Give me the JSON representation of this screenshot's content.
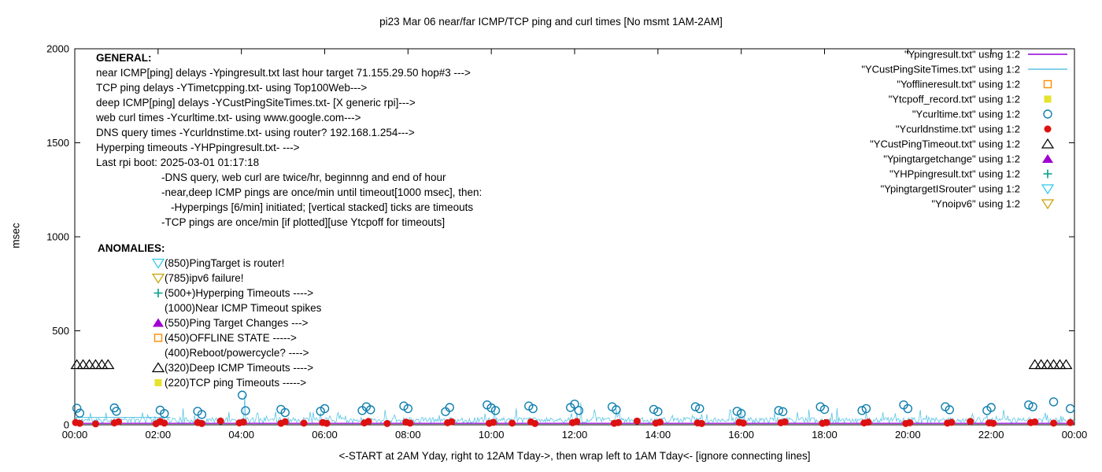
{
  "title": "pi23 Mar 06  near/far ICMP/TCP ping and curl times [No msmt 1AM-2AM]",
  "chart_data": {
    "type": "line",
    "title": "pi23 Mar 06  near/far ICMP/TCP ping and curl times [No msmt 1AM-2AM]",
    "xlabel": "<-START at 2AM Yday, right to 12AM Tday->, then wrap left to 1AM Tday<- [ignore connecting lines]",
    "ylabel": "msec",
    "ylim": [
      0,
      2000
    ],
    "xlim_hours": [
      0,
      24
    ],
    "grid": false,
    "legend_position": "top-right",
    "y_ticks": [
      0,
      500,
      1000,
      1500,
      2000
    ],
    "x_tick_hours": [
      0,
      2,
      4,
      6,
      8,
      10,
      12,
      14,
      16,
      18,
      20,
      22,
      24
    ],
    "x_tick_labels": [
      "00:00",
      "02:00",
      "04:00",
      "06:00",
      "08:00",
      "10:00",
      "12:00",
      "14:00",
      "16:00",
      "18:00",
      "20:00",
      "22:00",
      "00:00"
    ],
    "legend": [
      {
        "label": "\"Ypingresult.txt\" using 1:2",
        "marker": "line",
        "color": "#9400d3"
      },
      {
        "label": "\"YCustPingSiteTimes.txt\" using 1:2",
        "marker": "line",
        "color": "#5bc4e4"
      },
      {
        "label": "\"Yofflineresult.txt\" using 1:2",
        "marker": "square-open",
        "color": "#ff8c00"
      },
      {
        "label": "\"Ytcpoff_record.txt\" using 1:2",
        "marker": "square-filled",
        "color": "#e6e22e"
      },
      {
        "label": "\"Ycurltime.txt\" using 1:2",
        "marker": "circle-open",
        "color": "#0f7fae"
      },
      {
        "label": "\"Ycurldnstime.txt\" using 1:2",
        "marker": "circle-filled",
        "color": "#dd1111"
      },
      {
        "label": "\"YCustPingTimeout.txt\" using 1:2",
        "marker": "triangle-up-open",
        "color": "#000000"
      },
      {
        "label": "\"Ypingtargetchange\" using 1:2",
        "marker": "triangle-up-filled",
        "color": "#a000d0"
      },
      {
        "label": "\"YHPpingresult.txt\" using 1:2",
        "marker": "plus",
        "color": "#00a08a"
      },
      {
        "label": "\"YpingtargetISrouter\" using 1:2",
        "marker": "triangle-down-open",
        "color": "#2fc8e8"
      },
      {
        "label": "\"Ynoipv6\" using 1:2",
        "marker": "triangle-down-open",
        "color": "#c8a000"
      }
    ],
    "series": [
      {
        "name": "YCustPingSiteTimes.txt",
        "type": "line",
        "style": "noisy",
        "color": "#5bc4e4",
        "x_range": [
          0,
          24
        ],
        "noise": {
          "seed": 11,
          "points_per_hour": 40,
          "base": 10,
          "band": 30,
          "tall_prob": 0.07,
          "tall_extra": 40
        },
        "spikes": [
          [
            4.08,
            158
          ],
          [
            12.15,
            118
          ],
          [
            2.6,
            88
          ],
          [
            18.3,
            90
          ]
        ],
        "flat_overlay": {
          "y": 40,
          "x_range": [
            0,
            2.3
          ]
        }
      },
      {
        "name": "Ypingresult.txt",
        "type": "line",
        "style": "flat",
        "color": "#9400d3",
        "y": 8,
        "x_range": [
          0,
          24
        ]
      },
      {
        "name": "Ycurltime.txt",
        "type": "scatter",
        "marker": "circle-open",
        "color": "#0f7fae",
        "points": [
          [
            0.05,
            88
          ],
          [
            0.12,
            62
          ],
          [
            0.95,
            90
          ],
          [
            1.0,
            72
          ],
          [
            2.05,
            78
          ],
          [
            2.15,
            60
          ],
          [
            2.95,
            72
          ],
          [
            3.05,
            55
          ],
          [
            4.02,
            158
          ],
          [
            4.1,
            75
          ],
          [
            4.95,
            82
          ],
          [
            5.05,
            65
          ],
          [
            5.9,
            72
          ],
          [
            6.0,
            86
          ],
          [
            6.9,
            76
          ],
          [
            7.0,
            96
          ],
          [
            7.1,
            80
          ],
          [
            7.9,
            100
          ],
          [
            8.0,
            86
          ],
          [
            8.9,
            70
          ],
          [
            9.0,
            92
          ],
          [
            9.9,
            106
          ],
          [
            10.0,
            90
          ],
          [
            10.1,
            76
          ],
          [
            10.9,
            100
          ],
          [
            11.0,
            86
          ],
          [
            11.9,
            92
          ],
          [
            12.0,
            110
          ],
          [
            12.1,
            76
          ],
          [
            12.9,
            96
          ],
          [
            13.0,
            80
          ],
          [
            13.9,
            82
          ],
          [
            14.0,
            70
          ],
          [
            14.9,
            96
          ],
          [
            15.0,
            86
          ],
          [
            15.9,
            72
          ],
          [
            16.0,
            60
          ],
          [
            16.9,
            76
          ],
          [
            17.0,
            70
          ],
          [
            17.9,
            96
          ],
          [
            18.0,
            82
          ],
          [
            18.9,
            76
          ],
          [
            19.0,
            86
          ],
          [
            19.9,
            106
          ],
          [
            20.0,
            86
          ],
          [
            20.9,
            96
          ],
          [
            21.0,
            80
          ],
          [
            21.9,
            76
          ],
          [
            22.0,
            92
          ],
          [
            22.9,
            106
          ],
          [
            23.0,
            96
          ],
          [
            23.5,
            122
          ],
          [
            23.9,
            86
          ]
        ]
      },
      {
        "name": "Ycurldnstime.txt",
        "type": "scatter",
        "marker": "circle-filled",
        "color": "#dd1111",
        "points": [
          [
            0.02,
            12
          ],
          [
            0.12,
            8
          ],
          [
            0.5,
            5
          ],
          [
            0.95,
            10
          ],
          [
            1.05,
            16
          ],
          [
            1.95,
            6
          ],
          [
            2.05,
            18
          ],
          [
            2.15,
            9
          ],
          [
            2.95,
            12
          ],
          [
            3.05,
            7
          ],
          [
            3.5,
            20
          ],
          [
            3.95,
            10
          ],
          [
            4.05,
            14
          ],
          [
            4.95,
            8
          ],
          [
            5.05,
            16
          ],
          [
            5.5,
            9
          ],
          [
            5.95,
            12
          ],
          [
            6.05,
            8
          ],
          [
            6.95,
            10
          ],
          [
            7.05,
            18
          ],
          [
            7.5,
            7
          ],
          [
            7.95,
            14
          ],
          [
            8.05,
            9
          ],
          [
            8.95,
            11
          ],
          [
            9.05,
            16
          ],
          [
            9.95,
            8
          ],
          [
            10.05,
            13
          ],
          [
            10.5,
            9
          ],
          [
            10.95,
            15
          ],
          [
            11.05,
            7
          ],
          [
            11.95,
            11
          ],
          [
            12.05,
            17
          ],
          [
            12.95,
            8
          ],
          [
            13.05,
            12
          ],
          [
            13.5,
            20
          ],
          [
            13.95,
            9
          ],
          [
            14.05,
            14
          ],
          [
            14.95,
            10
          ],
          [
            15.05,
            7
          ],
          [
            15.95,
            13
          ],
          [
            16.05,
            9
          ],
          [
            16.95,
            11
          ],
          [
            17.05,
            15
          ],
          [
            17.95,
            8
          ],
          [
            18.05,
            12
          ],
          [
            18.95,
            10
          ],
          [
            19.05,
            14
          ],
          [
            19.95,
            7
          ],
          [
            20.05,
            11
          ],
          [
            20.95,
            9
          ],
          [
            21.05,
            13
          ],
          [
            21.5,
            18
          ],
          [
            21.95,
            10
          ],
          [
            22.05,
            8
          ],
          [
            22.95,
            12
          ],
          [
            23.05,
            15
          ],
          [
            23.5,
            9
          ],
          [
            23.9,
            12
          ]
        ]
      },
      {
        "name": "YCustPingTimeout.txt",
        "type": "scatter",
        "marker": "triangle-up-open",
        "color": "#000000",
        "points": [
          [
            0.05,
            320
          ],
          [
            0.2,
            320
          ],
          [
            0.35,
            320
          ],
          [
            0.5,
            320
          ],
          [
            0.65,
            320
          ],
          [
            0.8,
            320
          ],
          [
            23.05,
            320
          ],
          [
            23.2,
            320
          ],
          [
            23.35,
            320
          ],
          [
            23.5,
            320
          ],
          [
            23.65,
            320
          ],
          [
            23.8,
            320
          ]
        ]
      }
    ]
  },
  "annotations": {
    "general": {
      "heading": "GENERAL:",
      "lines": [
        "near ICMP[ping] delays -Ypingresult.txt last hour target 71.155.29.50 hop#3 --->",
        "TCP ping delays -YTimetcpping.txt- using Top100Web--->",
        "deep ICMP[ping] delays -YCustPingSiteTimes.txt- [X generic rpi]--->",
        "web curl times -Ycurltime.txt- using www.google.com--->",
        "DNS query times -Ycurldnstime.txt- using router? 192.168.1.254--->",
        "Hyperping timeouts -YHPpingresult.txt- --->",
        "Last rpi boot: 2025-03-01 01:17:18"
      ],
      "indented_lines": [
        "-DNS query, web curl are twice/hr, beginnng and end of hour",
        "-near,deep ICMP pings are once/min until timeout[1000 msec], then:",
        "-Hyperpings [6/min] initiated; [vertical stacked] ticks are timeouts",
        "-TCP pings are once/min [if plotted][use Ytcpoff for timeouts]"
      ],
      "indent_x": [
        205,
        205,
        217,
        205
      ]
    },
    "anomalies": {
      "heading": "ANOMALIES:",
      "items": [
        {
          "marker": "triangle-down-open",
          "color": "#2fc8e8",
          "text": "(850)PingTarget is router!"
        },
        {
          "marker": "triangle-down-open",
          "color": "#c8a000",
          "text": "(785)ipv6 failure!"
        },
        {
          "marker": "plus",
          "color": "#00a08a",
          "text": "(500+)Hyperping Timeouts ---->"
        },
        {
          "marker": "none",
          "color": "#000000",
          "text": "(1000)Near ICMP Timeout spikes"
        },
        {
          "marker": "triangle-up-filled",
          "color": "#a000d0",
          "text": "(550)Ping Target Changes --->"
        },
        {
          "marker": "square-open",
          "color": "#ff8c00",
          "text": "(450)OFFLINE STATE ----->"
        },
        {
          "marker": "none",
          "color": "#000000",
          "text": "(400)Reboot/powercycle? ---->"
        },
        {
          "marker": "triangle-up-open",
          "color": "#000000",
          "text": "(320)Deep ICMP Timeouts ---->"
        },
        {
          "marker": "square-filled",
          "color": "#e6e22e",
          "text": "(220)TCP ping Timeouts ----->"
        }
      ]
    }
  }
}
